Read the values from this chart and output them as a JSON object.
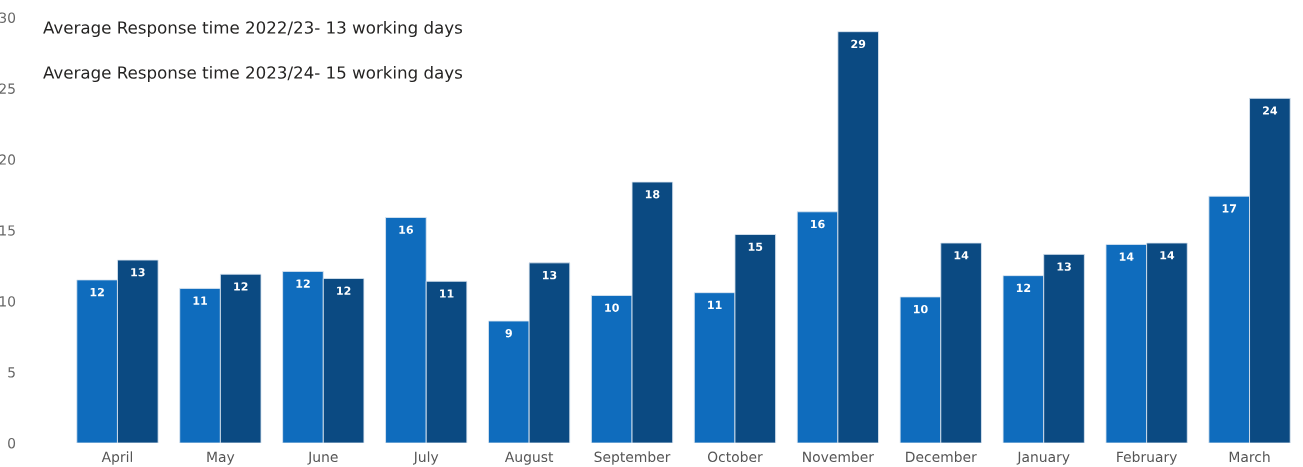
{
  "chart_data": {
    "type": "bar",
    "categories": [
      "April",
      "May",
      "June",
      "July",
      "August",
      "September",
      "October",
      "November",
      "December",
      "January",
      "February",
      "March"
    ],
    "series": [
      {
        "color": "#0f6cbd",
        "values": [
          11.5,
          10.9,
          12.1,
          15.9,
          8.6,
          10.4,
          10.6,
          16.3,
          10.3,
          11.8,
          14.0,
          17.4
        ],
        "value_labels": [
          "12",
          "11",
          "12",
          "16",
          "9",
          "10",
          "11",
          "16",
          "10",
          "12",
          "14",
          "17"
        ]
      },
      {
        "color": "#0b4a82",
        "values": [
          12.9,
          11.9,
          11.6,
          11.4,
          12.7,
          18.4,
          14.7,
          29.0,
          14.1,
          13.3,
          14.1,
          24.3
        ],
        "value_labels": [
          "13",
          "12",
          "12",
          "11",
          "13",
          "18",
          "15",
          "29",
          "14",
          "13",
          "14",
          "24"
        ]
      }
    ],
    "ylim": [
      0,
      30
    ],
    "yticks": [
      0,
      5,
      10,
      15,
      20,
      25,
      30
    ],
    "annotations": [
      "Average Response time 2022/23- 13 working days",
      "Average Response time 2023/24- 15 working days"
    ]
  }
}
